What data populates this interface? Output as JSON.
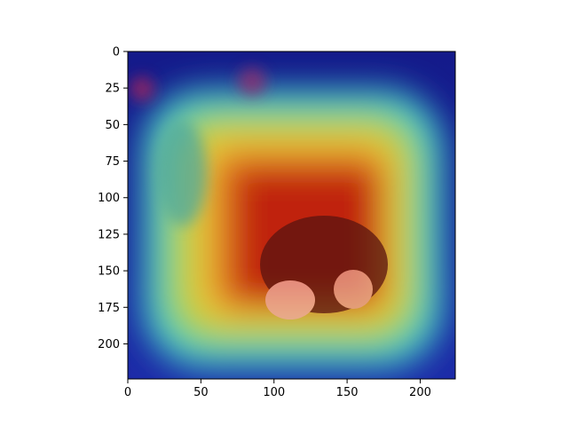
{
  "chart_data": {
    "type": "heatmap",
    "title": "",
    "xlabel": "",
    "ylabel": "",
    "xlim": [
      0,
      224
    ],
    "ylim": [
      224,
      0
    ],
    "y_inverted": true,
    "colormap": "jet",
    "overlay": "attention heatmap over photo of two cats",
    "x_ticks": [
      0,
      50,
      100,
      150,
      200
    ],
    "y_ticks": [
      0,
      25,
      50,
      75,
      100,
      125,
      150,
      175,
      200
    ],
    "x_tick_labels": [
      "0",
      "50",
      "100",
      "150",
      "200"
    ],
    "y_tick_labels": [
      "0",
      "25",
      "50",
      "75",
      "100",
      "125",
      "150",
      "175",
      "200"
    ],
    "grid": false,
    "legend": "none",
    "colors": {
      "low": "#1a2fa8",
      "mid": "#3ec8c8",
      "high_mid": "#e8d23a",
      "high": "#c0240e"
    }
  }
}
